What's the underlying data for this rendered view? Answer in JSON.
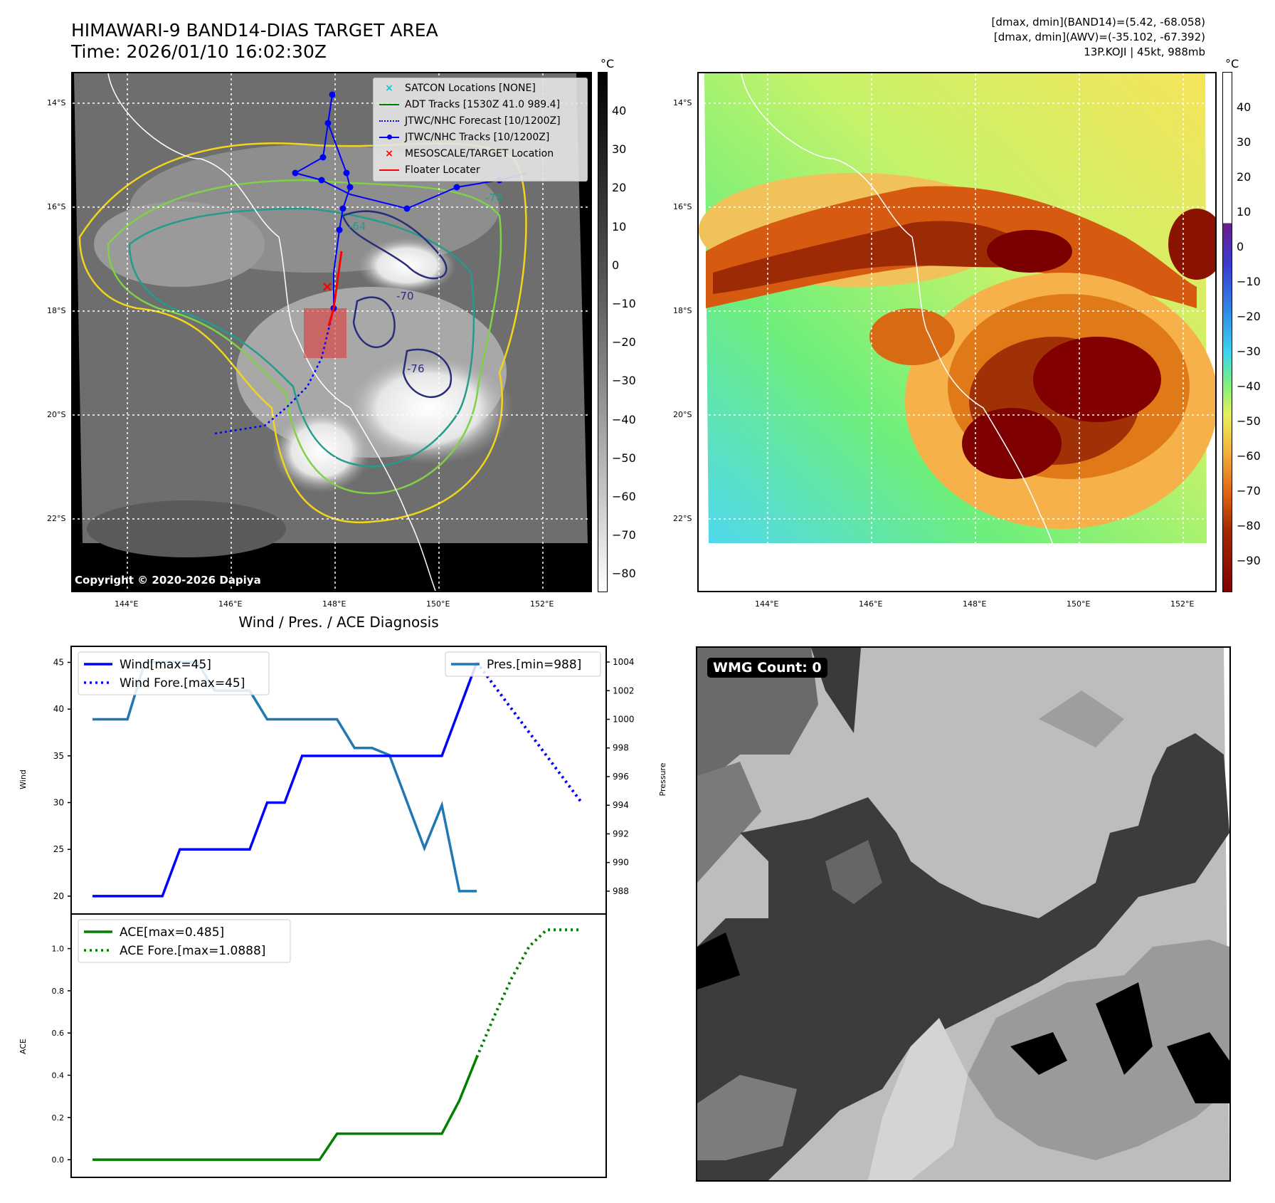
{
  "header": {
    "title_line1": "HIMAWARI-9 BAND14-DIAS TARGET AREA",
    "title_line2": "Time: 2026/01/10 16:02:30Z",
    "info_line1": "[dmax, dmin](BAND14)=(5.42, -68.058)",
    "info_line2": "[dmax, dmin](AWV)=(-35.102, -67.392)",
    "info_line3": "13P.KOJI | 45kt, 988mb"
  },
  "map_ticks": {
    "lon": [
      "144°E",
      "146°E",
      "148°E",
      "150°E",
      "152°E"
    ],
    "lat": [
      "14°S",
      "16°S",
      "18°S",
      "20°S",
      "22°S"
    ]
  },
  "colorbar_left": {
    "unit": "°C",
    "ticks": [
      "40",
      "30",
      "20",
      "10",
      "0",
      "−10",
      "−20",
      "−30",
      "−40",
      "−50",
      "−60",
      "−70",
      "−80"
    ]
  },
  "colorbar_right": {
    "unit": "°C",
    "ticks": [
      "40",
      "30",
      "20",
      "10",
      "0",
      "−10",
      "−20",
      "−30",
      "−40",
      "−50",
      "−60",
      "−70",
      "−80",
      "−90"
    ]
  },
  "map_legend": {
    "items": [
      {
        "label": "SATCON Locations [NONE]",
        "color": "#17becf"
      },
      {
        "label": "ADT Tracks [1530Z 41.0 989.4]",
        "color": "#008000"
      },
      {
        "label": "JTWC/NHC Forecast [10/1200Z]",
        "color": "#0000ff"
      },
      {
        "label": "JTWC/NHC Tracks [10/1200Z]",
        "color": "#0000ff"
      },
      {
        "label": "MESOSCALE/TARGET Location",
        "color": "#ff0000"
      },
      {
        "label": "Floater Locater",
        "color": "#ff0000"
      }
    ]
  },
  "contour_labels": [
    "-64",
    "-70",
    "-76",
    "-76"
  ],
  "copyright": "Copyright © 2020-2026 Dapiya",
  "diag_title": "Wind / Pres. / ACE Diagnosis",
  "wmg": "WMG Count: 0",
  "chart_data": [
    {
      "type": "line",
      "title": "Wind / Pres. / ACE Diagnosis",
      "ylabel": "Wind",
      "y2label": "Pressure",
      "ylim": [
        19,
        45.8
      ],
      "y2lim": [
        987,
        1004.5
      ],
      "yticks": [
        20,
        25,
        30,
        35,
        40,
        45
      ],
      "y2ticks": [
        988,
        990,
        992,
        994,
        996,
        998,
        1000,
        1002,
        1004
      ],
      "xlim": [
        0,
        29
      ],
      "series": [
        {
          "name": "Wind[max=45]",
          "color": "#0000ff",
          "style": "solid",
          "axis": "left",
          "x": [
            0,
            4,
            5,
            9,
            10,
            11,
            12,
            20,
            21,
            22
          ],
          "values": [
            20,
            20,
            25,
            25,
            30,
            30,
            35,
            35,
            40,
            45
          ]
        },
        {
          "name": "Wind Fore.[max=45]",
          "color": "#0000ff",
          "style": "dotted",
          "axis": "left",
          "x": [
            22,
            28
          ],
          "values": [
            45,
            30
          ]
        },
        {
          "name": "Pres.[min=988]",
          "color": "#1f77b4",
          "style": "solid",
          "axis": "right",
          "x": [
            0,
            2,
            3,
            6,
            7,
            9,
            10,
            14,
            15,
            16,
            17,
            19,
            20,
            21,
            22
          ],
          "values": [
            1000,
            1000,
            1004,
            1004,
            1002,
            1002,
            1000,
            1000,
            998,
            998,
            997.5,
            991,
            994,
            988,
            988
          ]
        }
      ],
      "legend_left": [
        "Wind[max=45]",
        "Wind Fore.[max=45]"
      ],
      "legend_right": [
        "Pres.[min=988]"
      ]
    },
    {
      "type": "line",
      "ylabel": "ACE",
      "ylim": [
        -0.05,
        1.13
      ],
      "yticks": [
        "0.0",
        "0.2",
        "0.4",
        "0.6",
        "0.8",
        "1.0"
      ],
      "xlim": [
        0,
        29
      ],
      "series": [
        {
          "name": "ACE[max=0.485]",
          "color": "#008000",
          "style": "solid",
          "x": [
            0,
            13,
            14,
            19,
            20,
            21,
            22
          ],
          "values": [
            0,
            0,
            0.123,
            0.123,
            0.123,
            0.28,
            0.485
          ]
        },
        {
          "name": "ACE Fore.[max=1.0888]",
          "color": "#008000",
          "style": "dotted",
          "x": [
            22,
            23,
            24,
            25,
            26,
            27,
            28
          ],
          "values": [
            0.485,
            0.68,
            0.86,
            1.01,
            1.0888,
            1.0888,
            1.0888
          ]
        }
      ],
      "legend": [
        "ACE[max=0.485]",
        "ACE Fore.[max=1.0888]"
      ]
    }
  ]
}
